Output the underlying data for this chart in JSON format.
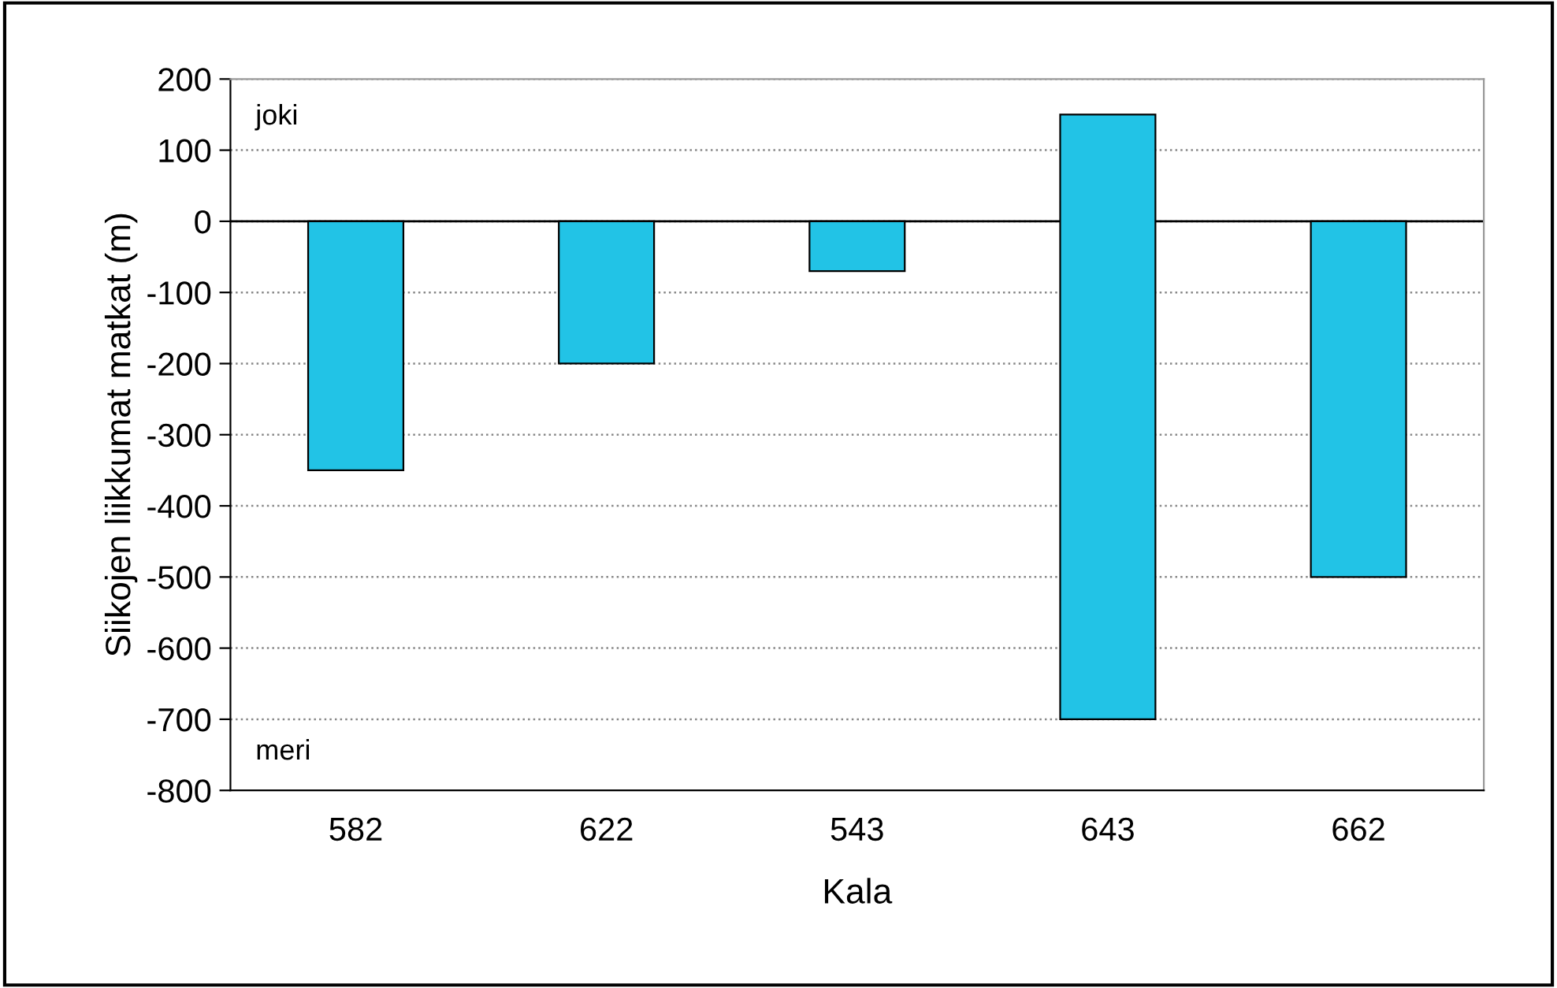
{
  "chart_data": {
    "type": "bar",
    "xlabel": "Kala",
    "ylabel": "Siikojen liikkumat matkat (m)",
    "categories": [
      "582",
      "622",
      "543",
      "643",
      "662"
    ],
    "values": [
      -350,
      -200,
      -70,
      850,
      -500
    ],
    "base": [
      0,
      0,
      0,
      -700,
      0
    ],
    "color": "#22c3e6",
    "ylim": [
      -800,
      200
    ],
    "yticks": [
      -800,
      -700,
      -600,
      -500,
      -400,
      -300,
      -200,
      -100,
      0,
      100,
      200
    ],
    "grid": "y",
    "ref_lines": [
      {
        "axis": "y",
        "value": 0,
        "color": "#000000",
        "line_style": "solid"
      }
    ],
    "annotations": [
      "joki",
      "meri"
    ]
  }
}
